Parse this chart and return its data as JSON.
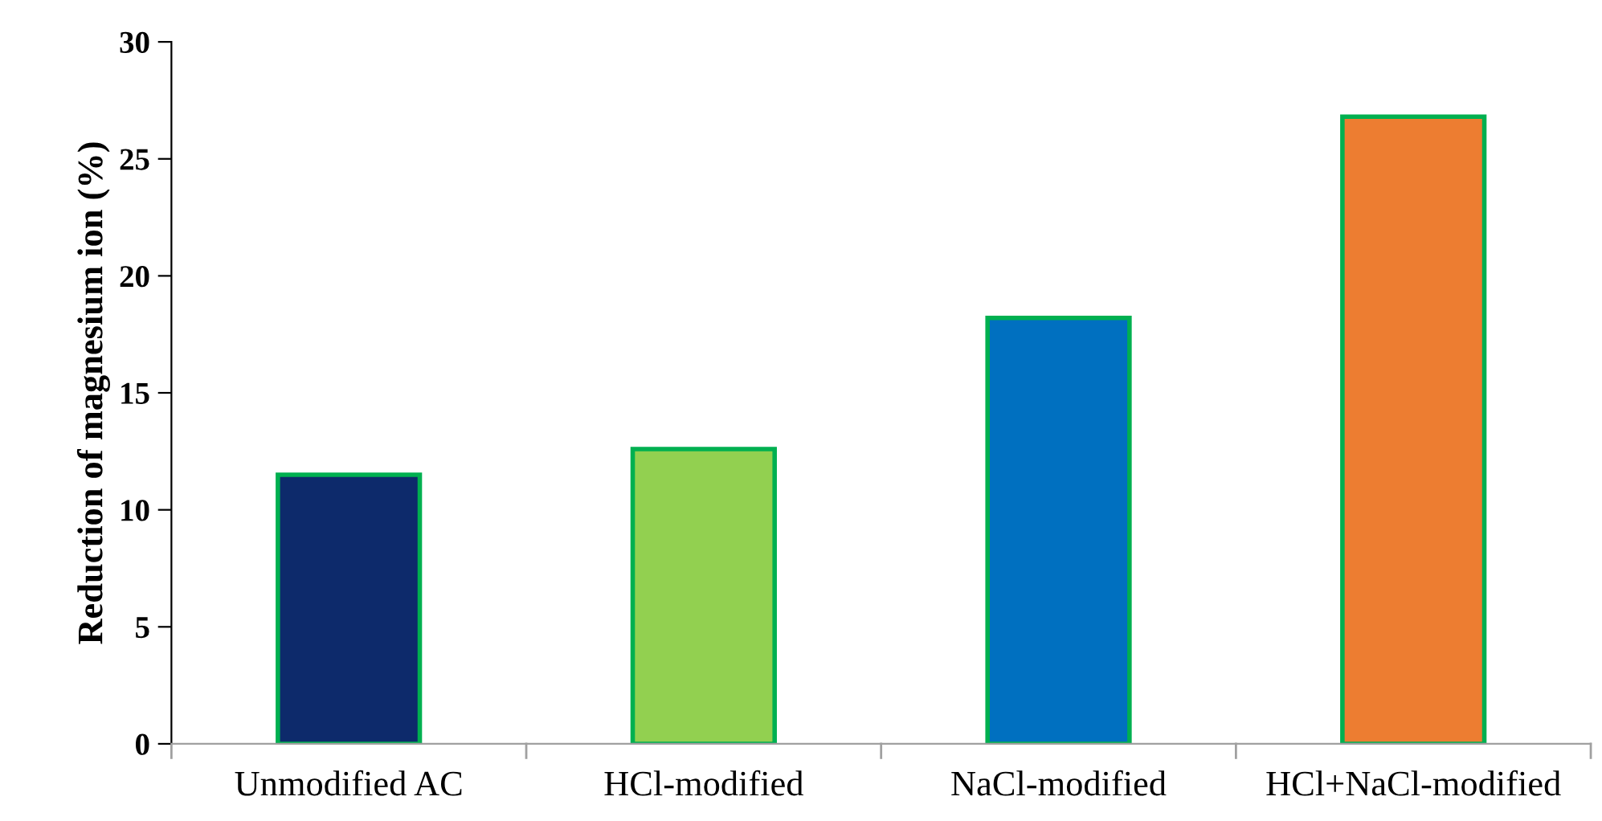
{
  "chart_data": {
    "type": "bar",
    "ylabel": "Reduction of magnesium ion (%)",
    "categories": [
      "Unmodified AC",
      "HCl-modified",
      "NaCl-modified",
      "HCl+NaCl-modified"
    ],
    "values": [
      11.5,
      12.6,
      18.2,
      26.8
    ],
    "colors": [
      "#0d2a6b",
      "#92d050",
      "#0070c0",
      "#ed7d31"
    ],
    "ylim": [
      0,
      30
    ],
    "yticks": [
      0,
      5,
      10,
      15,
      20,
      25,
      30
    ],
    "grid": false,
    "legend": false
  }
}
